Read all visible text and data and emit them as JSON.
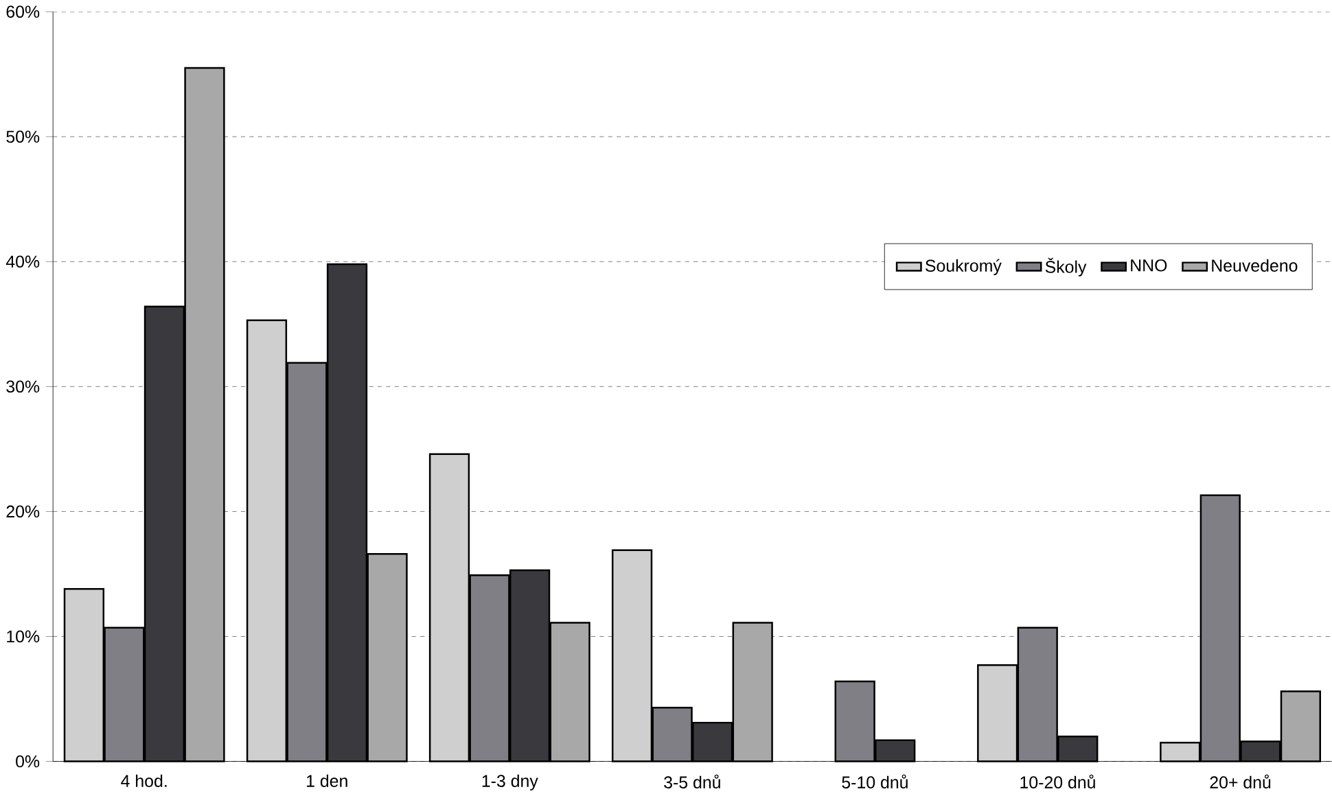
{
  "chart_data": {
    "type": "bar",
    "categories": [
      "4 hod.",
      "1 den",
      "1-3 dny",
      "3-5 dnů",
      "5-10 dnů",
      "10-20 dnů",
      "20+ dnů"
    ],
    "series": [
      {
        "name": "Soukromý",
        "color": "#cfcfcf",
        "values": [
          13.8,
          35.3,
          24.6,
          16.9,
          null,
          7.7,
          1.5
        ]
      },
      {
        "name": "Školy",
        "color": "#7f7f85",
        "values": [
          10.7,
          31.9,
          14.9,
          4.3,
          6.4,
          10.7,
          21.3
        ]
      },
      {
        "name": "NNO",
        "color": "#3a3a3e",
        "values": [
          36.4,
          39.8,
          15.3,
          3.1,
          1.7,
          2.0,
          1.6
        ]
      },
      {
        "name": "Neuvedeno",
        "color": "#a8a8a8",
        "values": [
          55.5,
          16.6,
          11.1,
          11.1,
          null,
          null,
          5.6
        ]
      }
    ],
    "ylim": [
      0,
      60
    ],
    "yticks": [
      {
        "value": 0,
        "label": "0%"
      },
      {
        "value": 10,
        "label": "10%"
      },
      {
        "value": 20,
        "label": "20%"
      },
      {
        "value": 30,
        "label": "30%"
      },
      {
        "value": 40,
        "label": "40%"
      },
      {
        "value": 50,
        "label": "50%"
      },
      {
        "value": 60,
        "label": "60%"
      }
    ],
    "grid": "y",
    "legend": "right"
  }
}
